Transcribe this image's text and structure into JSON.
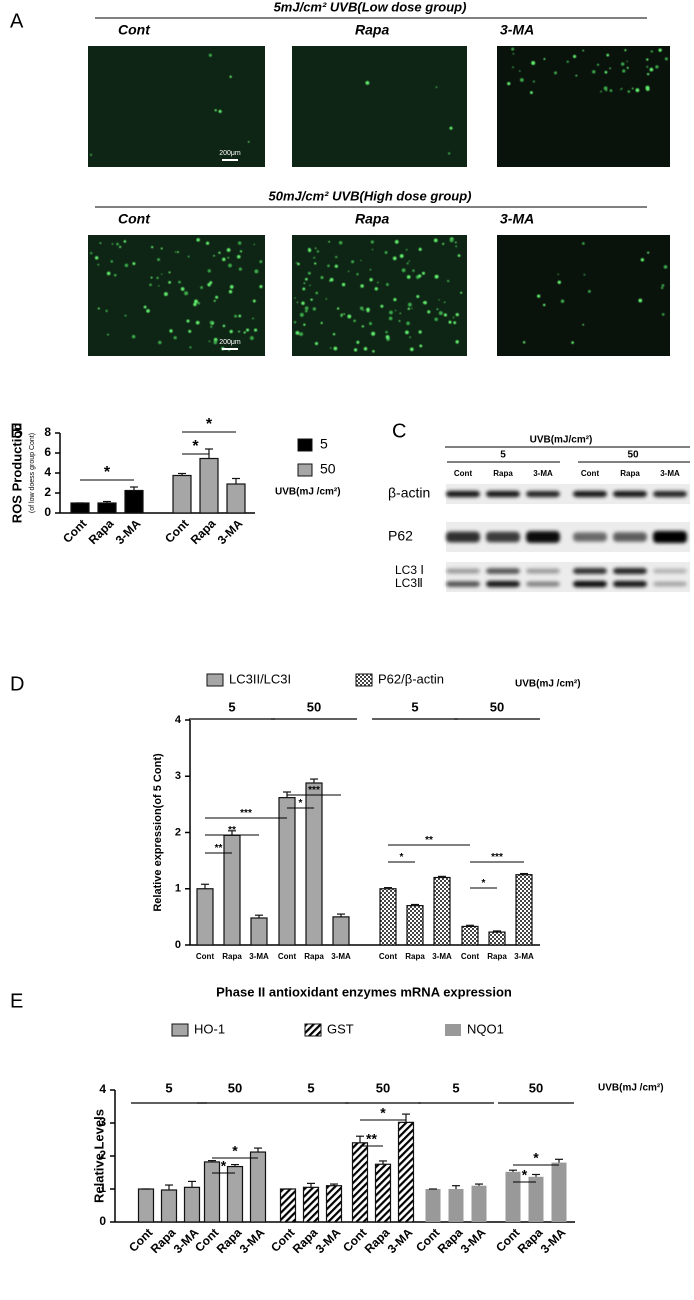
{
  "panel_labels": [
    "A",
    "B",
    "C",
    "D",
    "E"
  ],
  "panel_a": {
    "groups": [
      {
        "title": "5mJ/cm² UVB(Low dose group)",
        "images": [
          "Cont",
          "Rapa",
          "3-MA"
        ],
        "scale_bar": "200μm"
      },
      {
        "title": "50mJ/cm² UVB(High dose group)",
        "images": [
          "Cont",
          "Rapa",
          "3-MA"
        ],
        "scale_bar": "200μm"
      }
    ]
  },
  "panel_c": {
    "title": "UVB(mJ/cm²)",
    "doses": [
      "5",
      "50"
    ],
    "lanes": [
      "Cont",
      "Rapa",
      "3-MA",
      "Cont",
      "Rapa",
      "3-MA"
    ],
    "rows": [
      "β-actin",
      "P62",
      "LC3 Ⅰ",
      "LC3Ⅱ"
    ]
  },
  "chart_data": [
    {
      "type": "bar",
      "ylabel": "ROS Production",
      "ylabel_note": "(of low doess group Cont)",
      "categories": [
        "Cont",
        "Rapa",
        "3-MA",
        "Cont",
        "Rapa",
        "3-MA"
      ],
      "series": [
        {
          "name": "5",
          "color": "#000000",
          "values": [
            1,
            1,
            2.25,
            null,
            null,
            null
          ],
          "errors": [
            0,
            0.15,
            0.35,
            null,
            null,
            null
          ]
        },
        {
          "name": "50",
          "color": "#a6a6a6",
          "values": [
            null,
            null,
            null,
            3.75,
            5.45,
            2.9
          ],
          "errors": [
            null,
            null,
            null,
            0.2,
            0.95,
            0.55
          ]
        }
      ],
      "legend_title": "UVB(mJ /cm²)",
      "annotations": [
        "*",
        "*",
        "*"
      ],
      "ylim": [
        0,
        8
      ],
      "yticks": [
        0,
        2,
        4,
        6,
        8
      ]
    },
    {
      "type": "bar",
      "ylabel": "Relative expression(of 5 Cont)",
      "categories": [
        "Cont",
        "Rapa",
        "3-MA",
        "Cont",
        "Rapa",
        "3-MA",
        "Cont",
        "Rapa",
        "3-MA",
        "Cont",
        "Rapa",
        "3-MA"
      ],
      "group_labels": [
        "5",
        "50",
        "5",
        "50"
      ],
      "series": [
        {
          "name": "LC3II/LC3I",
          "color": "#a6a6a6",
          "values": [
            1,
            1.95,
            0.48,
            2.62,
            2.88,
            0.5,
            null,
            null,
            null,
            null,
            null,
            null
          ],
          "errors": [
            0.08,
            0.08,
            0.05,
            0.1,
            0.07,
            0.05,
            null,
            null,
            null,
            null,
            null,
            null
          ]
        },
        {
          "name": "P62/β-actin",
          "color": "#555555",
          "pattern": "checker",
          "values": [
            null,
            null,
            null,
            null,
            null,
            null,
            1,
            0.7,
            1.2,
            0.33,
            0.23,
            1.25
          ],
          "errors": [
            null,
            null,
            null,
            null,
            null,
            null,
            0.02,
            0.02,
            0.02,
            0.02,
            0.02,
            0.02
          ]
        }
      ],
      "legend_title": "UVB(mJ /cm²)",
      "annotations": [
        "**",
        "**",
        "***",
        "*",
        "***",
        "*",
        "**",
        "*",
        "***"
      ],
      "ylim": [
        0,
        4
      ],
      "yticks": [
        0,
        1,
        2,
        3,
        4
      ]
    },
    {
      "type": "bar",
      "title": "Phase II antioxidant enzymes mRNA expression",
      "ylabel": "Relative Levels",
      "categories": [
        "Cont",
        "Rapa",
        "3-MA",
        "Cont",
        "Rapa",
        "3-MA",
        "Cont",
        "Rapa",
        "3-MA",
        "Cont",
        "Rapa",
        "3-MA",
        "Cont",
        "Rapa",
        "3-MA",
        "Cont",
        "Rapa",
        "3-MA"
      ],
      "group_labels": [
        "5",
        "50",
        "5",
        "50",
        "5",
        "50"
      ],
      "series": [
        {
          "name": "HO-1",
          "color": "#a6a6a6",
          "values": [
            1,
            0.97,
            1.05,
            1.82,
            1.68,
            2.12,
            null,
            null,
            null,
            null,
            null,
            null,
            null,
            null,
            null,
            null,
            null,
            null
          ],
          "errors": [
            0,
            0.15,
            0.18,
            0.04,
            0.06,
            0.12,
            null,
            null,
            null,
            null,
            null,
            null,
            null,
            null,
            null,
            null,
            null,
            null
          ]
        },
        {
          "name": "GST",
          "color": "#000000",
          "pattern": "hatch",
          "values": [
            null,
            null,
            null,
            null,
            null,
            null,
            1,
            1.05,
            1.1,
            2.4,
            1.75,
            3.02,
            null,
            null,
            null,
            null,
            null,
            null
          ],
          "errors": [
            null,
            null,
            null,
            null,
            null,
            null,
            0,
            0.12,
            0.05,
            0.2,
            0.1,
            0.25,
            null,
            null,
            null,
            null,
            null,
            null
          ]
        },
        {
          "name": "NQO1",
          "color": "#999999",
          "outline": false,
          "values": [
            null,
            null,
            null,
            null,
            null,
            null,
            null,
            null,
            null,
            null,
            null,
            null,
            1,
            1,
            1.1,
            1.52,
            1.37,
            1.8
          ],
          "errors": [
            null,
            null,
            null,
            null,
            null,
            null,
            null,
            null,
            null,
            null,
            null,
            null,
            0,
            0.1,
            0.05,
            0.05,
            0.07,
            0.1
          ]
        }
      ],
      "legend_title": "UVB(mJ /cm²)",
      "annotations": [
        "*",
        "*",
        "**",
        "*",
        "*",
        "*"
      ],
      "ylim": [
        0,
        4
      ],
      "yticks": [
        0,
        1,
        2,
        3,
        4
      ]
    }
  ]
}
